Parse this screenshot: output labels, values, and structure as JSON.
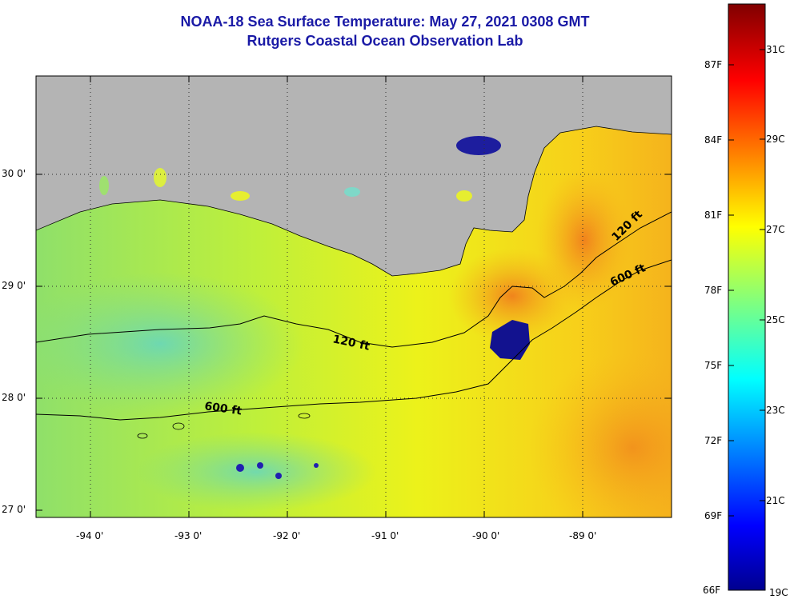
{
  "title": {
    "line1": "NOAA-18 Sea Surface Temperature:  May 27, 2021 0308 GMT",
    "line2": "Rutgers Coastal Ocean Observation Lab"
  },
  "map": {
    "latitude_labels": [
      "30 0'",
      "29 0'",
      "28 0'",
      "27 0'"
    ],
    "longitude_labels": [
      "-94 0'",
      "-93 0'",
      "-92 0'",
      "-91 0'",
      "-90 0'",
      "-89 0'"
    ],
    "isobath_labels": {
      "shelf_120_west": "120 ft",
      "shelf_600_west": "600 ft",
      "shelf_120_east": "120 ft",
      "shelf_600_east": "600 ft"
    },
    "land_color": "#b4b4b4"
  },
  "colorbar": {
    "fahrenheit_labels": [
      "87F",
      "84F",
      "81F",
      "78F",
      "75F",
      "72F",
      "69F",
      "66F"
    ],
    "celsius_labels": [
      "31C",
      "29C",
      "27C",
      "25C",
      "23C",
      "21C",
      "19C"
    ],
    "min_label": "19C"
  }
}
